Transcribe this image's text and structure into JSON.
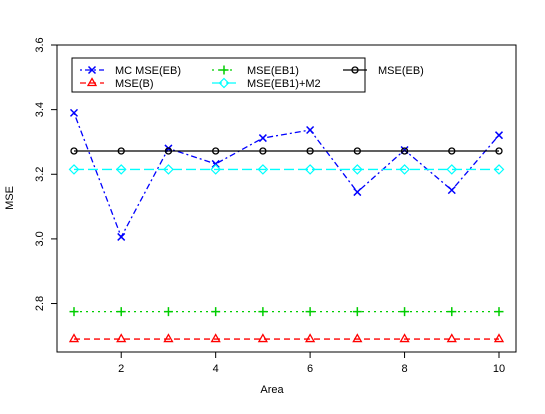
{
  "chart_data": {
    "type": "line",
    "x_label": "Area",
    "y_label": "MSE",
    "x": [
      1,
      2,
      3,
      4,
      5,
      6,
      7,
      8,
      9,
      10
    ],
    "series": [
      {
        "name": "MC MSE(EB)",
        "color": "#0000ff",
        "marker": "x",
        "linestyle": "dotdash",
        "values": [
          3.39,
          3.006,
          3.28,
          3.232,
          3.312,
          3.337,
          3.145,
          3.275,
          3.151,
          3.321
        ]
      },
      {
        "name": "MSE(B)",
        "color": "#ff0000",
        "marker": "triangle",
        "linestyle": "dashed",
        "values": [
          2.69,
          2.69,
          2.69,
          2.69,
          2.69,
          2.69,
          2.69,
          2.69,
          2.69,
          2.69
        ]
      },
      {
        "name": "MSE(EB1)",
        "color": "#00cd00",
        "marker": "plus",
        "linestyle": "dotted",
        "values": [
          2.775,
          2.775,
          2.775,
          2.775,
          2.775,
          2.775,
          2.775,
          2.775,
          2.775,
          2.775
        ]
      },
      {
        "name": "MSE(EB1)+M2",
        "color": "#00ffff",
        "marker": "diamond",
        "linestyle": "longdash",
        "values": [
          3.215,
          3.215,
          3.215,
          3.215,
          3.215,
          3.215,
          3.215,
          3.215,
          3.215,
          3.215
        ]
      },
      {
        "name": "MSE(EB)",
        "color": "#000000",
        "marker": "circle",
        "linestyle": "solid",
        "values": [
          3.272,
          3.272,
          3.272,
          3.272,
          3.272,
          3.272,
          3.272,
          3.272,
          3.272,
          3.272
        ]
      }
    ],
    "xlim": [
      0.64,
      10.36
    ],
    "ylim": [
      2.65,
      3.6
    ],
    "xticks": [
      2,
      4,
      6,
      8,
      10
    ],
    "yticks": [
      2.8,
      {
        "value": 3,
        "label": "3.0"
      },
      3.2,
      3.4,
      3.6
    ]
  }
}
